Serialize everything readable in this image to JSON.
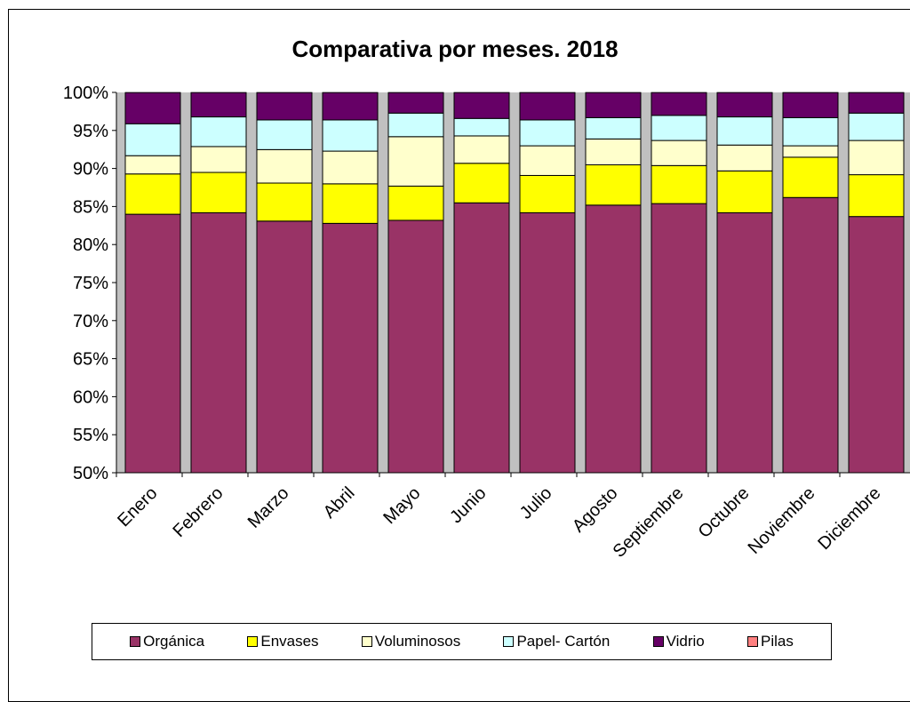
{
  "chart_data": {
    "type": "bar",
    "stacked": "percent",
    "title": "Comparativa por meses. 2018",
    "xlabel": "",
    "ylabel": "",
    "ylim": [
      50,
      100
    ],
    "yticks": [
      "50%",
      "55%",
      "60%",
      "65%",
      "70%",
      "75%",
      "80%",
      "85%",
      "90%",
      "95%",
      "100%"
    ],
    "grid": false,
    "plot_background": "#c0c0c0",
    "legend_position": "bottom",
    "categories": [
      "Enero",
      "Febrero",
      "Marzo",
      "Abril",
      "Mayo",
      "Junio",
      "Julio",
      "Agosto",
      "Septiembre",
      "Octubre",
      "Noviembre",
      "Diciembre"
    ],
    "series": [
      {
        "name": "Orgánica",
        "color": "#993366",
        "values": [
          84.0,
          84.2,
          83.1,
          82.8,
          83.2,
          85.5,
          84.2,
          85.2,
          85.4,
          84.2,
          86.2,
          83.7
        ]
      },
      {
        "name": "Envases",
        "color": "#ffff00",
        "values": [
          5.3,
          5.3,
          5.0,
          5.2,
          4.5,
          5.2,
          4.9,
          5.3,
          5.0,
          5.5,
          5.3,
          5.5
        ]
      },
      {
        "name": "Voluminosos",
        "color": "#ffffcc",
        "values": [
          2.4,
          3.4,
          4.4,
          4.3,
          6.5,
          3.6,
          3.9,
          3.4,
          3.3,
          3.4,
          1.5,
          4.5
        ]
      },
      {
        "name": "Papel- Cartón",
        "color": "#ccffff",
        "values": [
          4.2,
          3.9,
          3.9,
          4.1,
          3.1,
          2.3,
          3.4,
          2.8,
          3.3,
          3.7,
          3.7,
          3.6
        ]
      },
      {
        "name": "Vidrio",
        "color": "#660066",
        "values": [
          4.1,
          3.2,
          3.6,
          3.6,
          2.7,
          3.4,
          3.6,
          3.3,
          3.0,
          3.2,
          3.3,
          2.7
        ]
      },
      {
        "name": "Pilas",
        "color": "#ff8080",
        "values": [
          0.02,
          0.02,
          0.02,
          0.02,
          0.02,
          0.02,
          0.02,
          0.02,
          0.02,
          0.02,
          0.02,
          0.02
        ]
      }
    ]
  }
}
